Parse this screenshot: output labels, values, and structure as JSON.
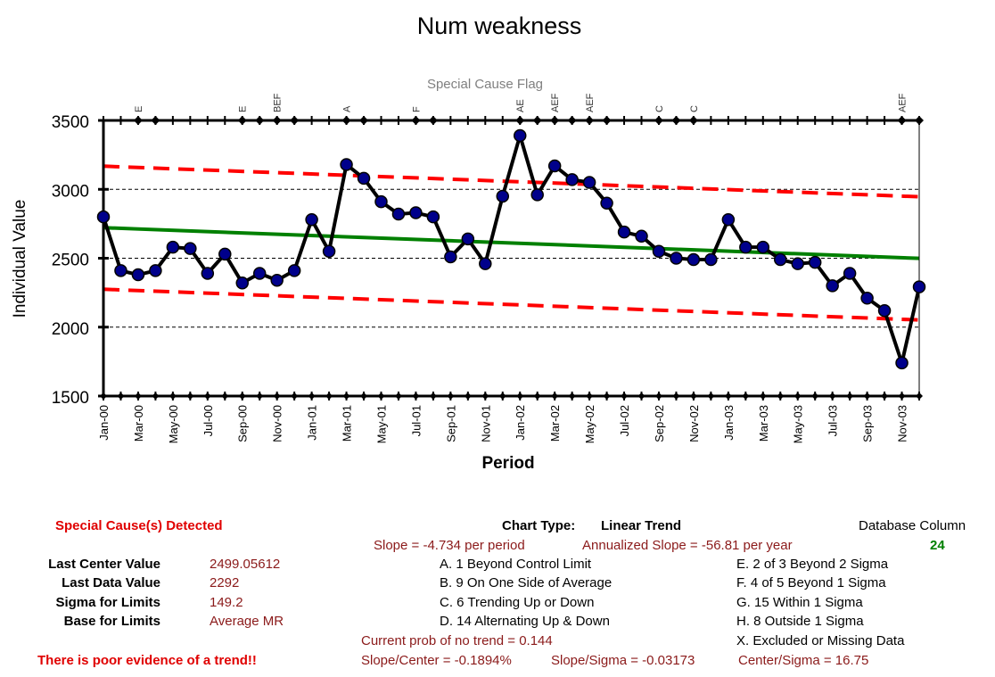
{
  "chart_data": {
    "type": "line",
    "title": "Num weakness",
    "subtitle": "Special Cause Flag",
    "xlabel": "Period",
    "ylabel": "Individual Value",
    "ylim": [
      1500,
      3500
    ],
    "yticks": [
      1500,
      2000,
      2500,
      3000,
      3500
    ],
    "grid": true,
    "x": [
      "Jan-00",
      "Feb-00",
      "Mar-00",
      "Apr-00",
      "May-00",
      "Jun-00",
      "Jul-00",
      "Aug-00",
      "Sep-00",
      "Oct-00",
      "Nov-00",
      "Dec-00",
      "Jan-01",
      "Feb-01",
      "Mar-01",
      "Apr-01",
      "May-01",
      "Jun-01",
      "Jul-01",
      "Aug-01",
      "Sep-01",
      "Oct-01",
      "Nov-01",
      "Dec-01",
      "Jan-02",
      "Feb-02",
      "Mar-02",
      "Apr-02",
      "May-02",
      "Jun-02",
      "Jul-02",
      "Aug-02",
      "Sep-02",
      "Oct-02",
      "Nov-02",
      "Dec-02",
      "Jan-03",
      "Feb-03",
      "Mar-03",
      "Apr-03",
      "May-03",
      "Jun-03",
      "Jul-03",
      "Aug-03",
      "Sep-03",
      "Oct-03",
      "Nov-03",
      "Dec-03"
    ],
    "xtick_labels": [
      "Jan-00",
      "Mar-00",
      "May-00",
      "Jul-00",
      "Sep-00",
      "Nov-00",
      "Jan-01",
      "Mar-01",
      "May-01",
      "Jul-01",
      "Sep-01",
      "Nov-01",
      "Jan-02",
      "Mar-02",
      "May-02",
      "Jul-02",
      "Sep-02",
      "Nov-02",
      "Jan-03",
      "Mar-03",
      "May-03",
      "Jul-03",
      "Sep-03",
      "Nov-03"
    ],
    "series": [
      {
        "values": [
          2800,
          2410,
          2380,
          2410,
          2580,
          2570,
          2390,
          2530,
          2320,
          2390,
          2340,
          2410,
          2780,
          2550,
          3180,
          3080,
          2910,
          2820,
          2830,
          2800,
          2510,
          2640,
          2460,
          2950,
          3390,
          2960,
          3170,
          3070,
          3050,
          2900,
          2690,
          2660,
          2550,
          2500,
          2490,
          2490,
          2780,
          2580,
          2580,
          2490,
          2460,
          2470,
          2300,
          2390,
          2210,
          2120,
          1740,
          2292
        ],
        "color": "#000000",
        "marker_color": "#00008b"
      }
    ],
    "center_line": {
      "start": 2721.55,
      "end": 2499.06,
      "color": "#008000"
    },
    "upper_limit": {
      "start": 3168.0,
      "end": 2946.0,
      "color": "#ff0000"
    },
    "lower_limit": {
      "start": 2275.0,
      "end": 2052.0,
      "color": "#ff0000"
    },
    "flags": [
      {
        "index": 2,
        "label": "E"
      },
      {
        "index": 3,
        "label": ""
      },
      {
        "index": 8,
        "label": "E"
      },
      {
        "index": 9,
        "label": ""
      },
      {
        "index": 10,
        "label": "BEF"
      },
      {
        "index": 11,
        "label": ""
      },
      {
        "index": 14,
        "label": "A"
      },
      {
        "index": 15,
        "label": ""
      },
      {
        "index": 18,
        "label": "F"
      },
      {
        "index": 19,
        "label": ""
      },
      {
        "index": 24,
        "label": "AE"
      },
      {
        "index": 25,
        "label": ""
      },
      {
        "index": 26,
        "label": "AEF"
      },
      {
        "index": 27,
        "label": ""
      },
      {
        "index": 28,
        "label": "AEF"
      },
      {
        "index": 29,
        "label": ""
      },
      {
        "index": 32,
        "label": "C"
      },
      {
        "index": 33,
        "label": ""
      },
      {
        "index": 34,
        "label": "C"
      },
      {
        "index": 46,
        "label": "AEF"
      },
      {
        "index": 47,
        "label": ""
      }
    ]
  },
  "info": {
    "special_cause": "Special Cause(s) Detected",
    "chart_type_label": "Chart Type:",
    "chart_type_value": "Linear Trend",
    "db_column_label": "Database Column",
    "db_column_value": "24",
    "slope": "Slope = -4.734 per period",
    "annualized": "Annualized Slope = -56.81 per year",
    "stats": [
      {
        "label": "Last Center Value",
        "value": "2499.05612"
      },
      {
        "label": "Last Data Value",
        "value": "2292"
      },
      {
        "label": "Sigma for Limits",
        "value": "149.2"
      },
      {
        "label": "Base for Limits",
        "value": "Average MR"
      }
    ],
    "rules_left": [
      "A.  1 Beyond Control Limit",
      "B.  9 On One Side of Average",
      "C.  6 Trending Up or Down",
      "D.  14 Alternating  Up & Down"
    ],
    "rules_right": [
      "E.  2 of 3 Beyond 2 Sigma",
      "F.  4 of 5 Beyond 1 Sigma",
      "G.  15 Within 1 Sigma",
      "H.  8 Outside 1 Sigma",
      "X.  Excluded or Missing Data"
    ],
    "prob": "Current prob of no trend = 0.144",
    "poor_evidence": "There is poor evidence of a trend!!",
    "slope_center": "Slope/Center = -0.1894%",
    "slope_sigma": "Slope/Sigma = -0.03173",
    "center_sigma": "Center/Sigma = 16.75"
  }
}
